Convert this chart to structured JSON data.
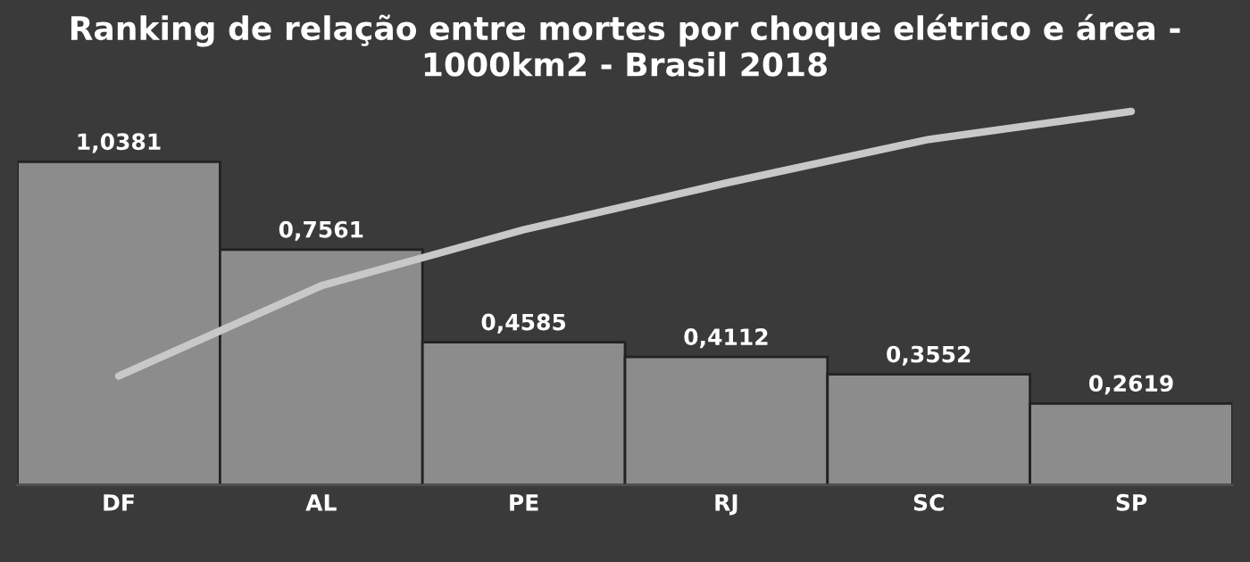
{
  "chart_data": {
    "type": "bar",
    "title": "Ranking de relação entre mortes por choque elétrico e área - 1000km2 - Brasil 2018",
    "categories": [
      "DF",
      "AL",
      "PE",
      "RJ",
      "SC",
      "SP"
    ],
    "series": [
      {
        "color": "#8c8c8c",
        "values": [
          1.0381,
          0.7561,
          0.4585,
          0.4112,
          0.3552,
          0.2619
        ],
        "value_labels": [
          "1,0381",
          "0,7561",
          "0,4585",
          "0,4112",
          "0,3552",
          "0,2619"
        ]
      },
      {
        "type": "line",
        "color": "#c8c8c8",
        "values": [
          0.35,
          0.64,
          0.82,
          0.97,
          1.11,
          1.2
        ]
      }
    ],
    "tick_labels": "x",
    "grid": false,
    "legend": false
  }
}
